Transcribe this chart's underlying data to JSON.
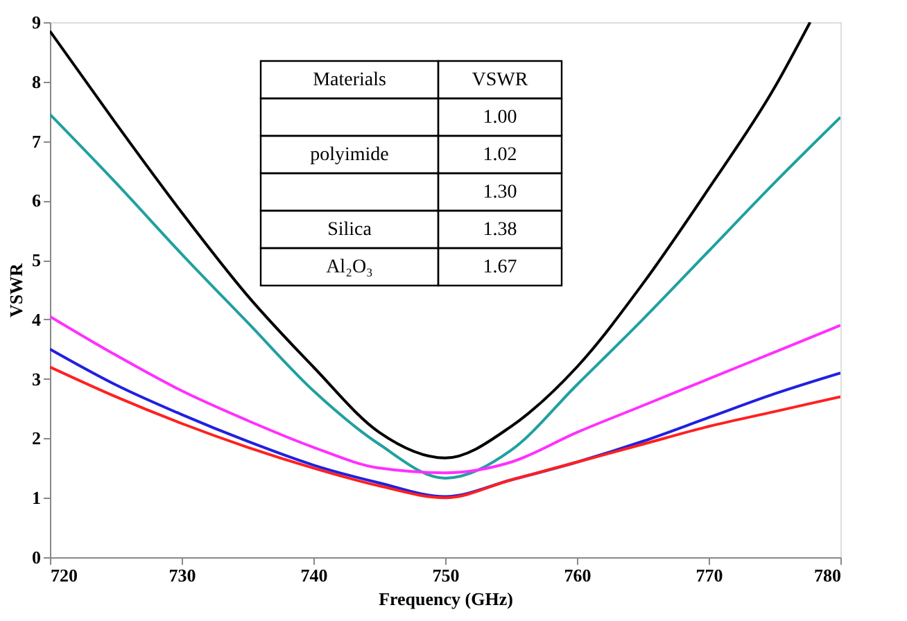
{
  "chart_data": {
    "type": "line",
    "xlabel": "Frequency (GHz)",
    "ylabel": "VSWR",
    "x": [
      720,
      725,
      730,
      735,
      740,
      745,
      750,
      755,
      760,
      765,
      770,
      775,
      780
    ],
    "xlim": [
      720,
      780
    ],
    "xticks": [
      720,
      730,
      740,
      750,
      760,
      770,
      780
    ],
    "ylim": [
      0,
      9
    ],
    "yticks": [
      0,
      1,
      2,
      3,
      4,
      5,
      6,
      7,
      8,
      9
    ],
    "grid": false,
    "legend": false,
    "marker": "none",
    "line_style": "solid",
    "series": [
      {
        "color": "#000000",
        "x": [
          720,
          725,
          730,
          735,
          740,
          745,
          750,
          755,
          760,
          765,
          770,
          775,
          777.7
        ],
        "values": [
          8.85,
          7.3,
          5.8,
          4.4,
          3.2,
          2.1,
          1.67,
          2.2,
          3.2,
          4.6,
          6.2,
          7.9,
          9.0
        ]
      },
      {
        "color": "#20a0a0",
        "values": [
          7.45,
          6.3,
          5.1,
          3.95,
          2.8,
          1.9,
          1.33,
          1.8,
          2.9,
          4.0,
          5.15,
          6.3,
          7.4
        ]
      },
      {
        "color": "#ff30ff",
        "values": [
          4.05,
          3.4,
          2.8,
          2.3,
          1.85,
          1.5,
          1.42,
          1.6,
          2.1,
          2.55,
          3.0,
          3.45,
          3.9
        ]
      },
      {
        "color": "#2020e0",
        "values": [
          3.5,
          2.9,
          2.4,
          1.95,
          1.55,
          1.25,
          1.02,
          1.3,
          1.6,
          1.95,
          2.35,
          2.75,
          3.1
        ]
      },
      {
        "color": "#ff2020",
        "values": [
          3.2,
          2.7,
          2.25,
          1.85,
          1.5,
          1.2,
          1.0,
          1.3,
          1.6,
          1.9,
          2.2,
          2.45,
          2.7
        ]
      }
    ],
    "annotations": [
      "Materials",
      "VSWR",
      null,
      "1.00",
      "polyimide",
      "1.02",
      null,
      "1.30",
      "Silica",
      "1.38",
      "Al₂O₃",
      "1.67"
    ]
  }
}
